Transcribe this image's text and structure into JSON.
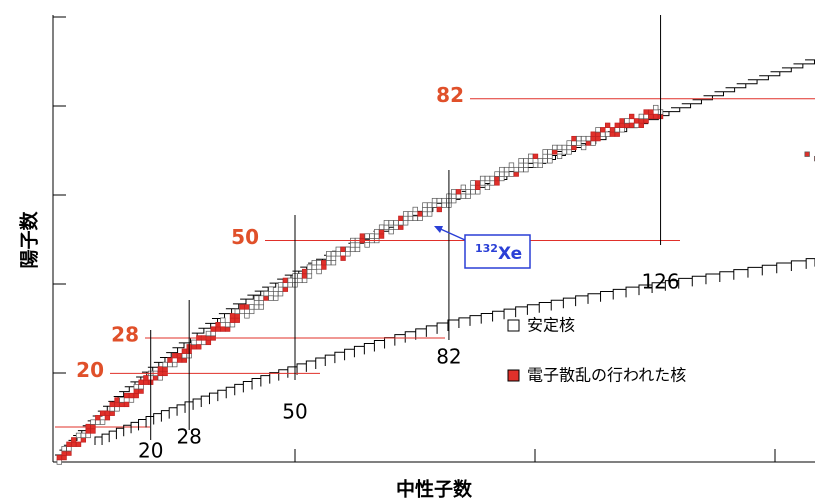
{
  "axis_labels": {
    "x": "中性子数",
    "y": "陽子数"
  },
  "proton_magic": [
    82,
    50,
    28,
    20
  ],
  "neutron_magic": [
    20,
    28,
    50,
    82,
    126
  ],
  "annotation": {
    "mass": "132",
    "element": "Xe"
  },
  "legend": [
    "安定核",
    "電子散乱の行われた核"
  ]
}
